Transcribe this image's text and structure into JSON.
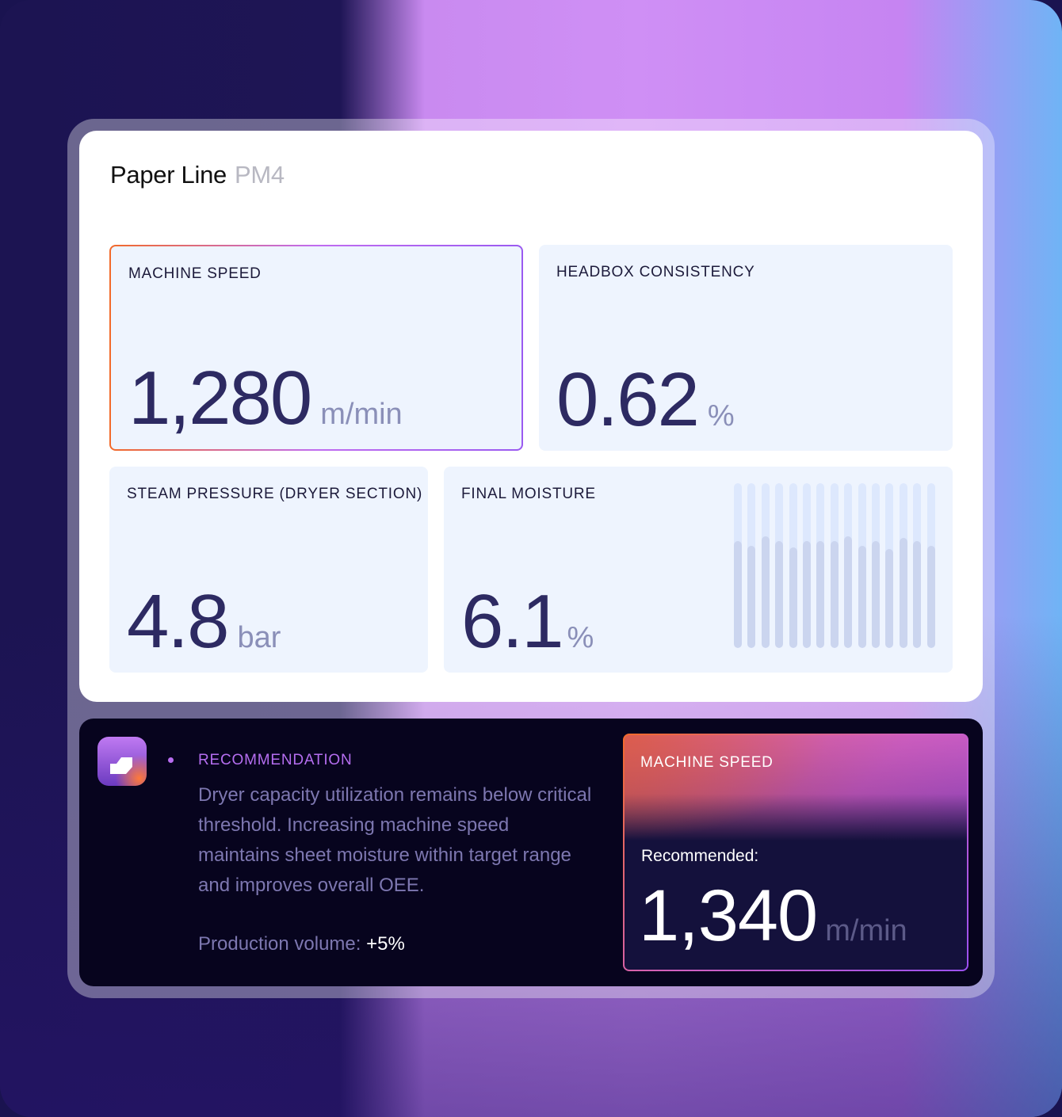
{
  "header": {
    "title": "Paper Line",
    "subtitle": "PM4"
  },
  "metrics": [
    {
      "label": "MACHINE SPEED",
      "value": "1,280",
      "unit": "m/min",
      "selected": true
    },
    {
      "label": "HEADBOX CONSISTENCY",
      "value": "0.62",
      "unit": "%"
    },
    {
      "label": "STEAM PRESSURE (DRYER SECTION)",
      "value": "4.8",
      "unit": "bar"
    },
    {
      "label": "FINAL MOISTURE",
      "value": "6.1",
      "unit": "%",
      "sparkline_levels": [
        0.65,
        0.62,
        0.68,
        0.65,
        0.61,
        0.65,
        0.65,
        0.65,
        0.68,
        0.62,
        0.65,
        0.6,
        0.67,
        0.65,
        0.62
      ]
    }
  ],
  "recommendation": {
    "label": "RECOMMENDATION",
    "text": "Dryer capacity utilization remains below critical threshold. Increasing machine speed maintains sheet moisture within target range and improves overall OEE.",
    "impact_label": "Production volume:",
    "impact_value": "+5%",
    "card": {
      "label": "MACHINE SPEED",
      "recommended_label": "Recommended:",
      "value": "1,340",
      "unit": "m/min"
    }
  },
  "colors": {
    "accent": "#b56ef0",
    "value": "#2d2a62",
    "tile_bg": "#eef4fe",
    "dark_bg": "#07041e"
  }
}
